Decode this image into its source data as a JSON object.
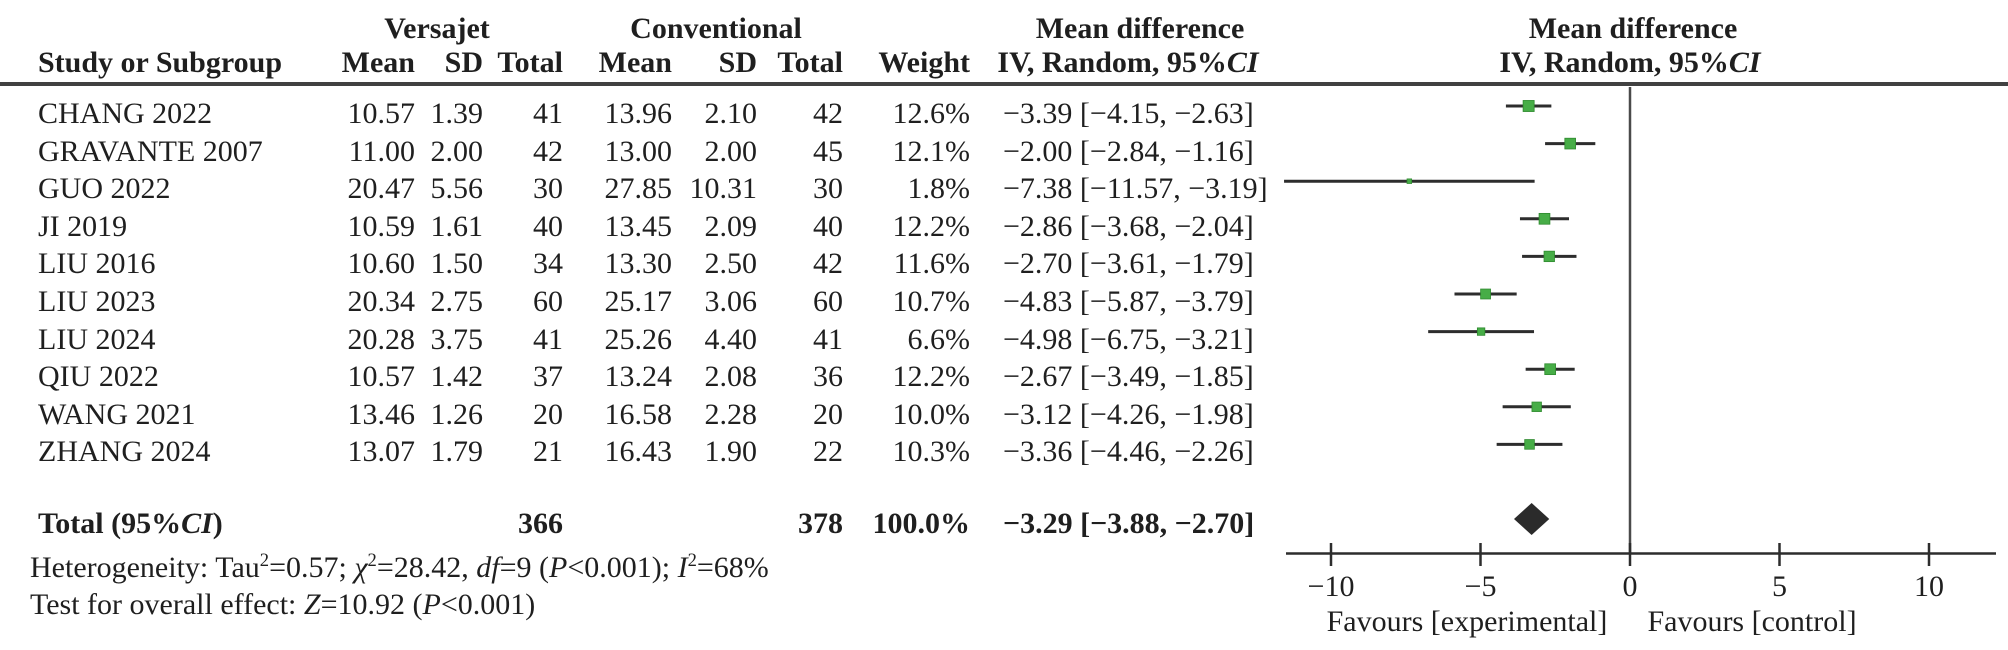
{
  "header": {
    "study_col": "Study or Subgroup",
    "group_experimental": "Versajet",
    "group_control": "Conventional",
    "sub_cols": {
      "mean": "Mean",
      "sd": "SD",
      "total": "Total",
      "weight": "Weight"
    },
    "effect_line1": "Mean difference",
    "effect_line2_pre": "IV, Random, 95%",
    "effect_line2_ci": "CI"
  },
  "total_row": {
    "label_pre": "Total (95%",
    "label_ci": "CI",
    "label_post": ")",
    "v_total": "366",
    "c_total": "378",
    "weight": "100.0%",
    "ci_text": "−3.29 [−3.88, −2.70]"
  },
  "footnotes": {
    "heterogeneity_segments": [
      {
        "t": "Heterogeneity: Tau"
      },
      {
        "t": "2",
        "sup": true
      },
      {
        "t": "=0.57; "
      },
      {
        "t": "χ",
        "i": true
      },
      {
        "t": "2",
        "sup": true
      },
      {
        "t": "=28.42, "
      },
      {
        "t": "df",
        "i": true
      },
      {
        "t": "=9 ("
      },
      {
        "t": "P",
        "i": true
      },
      {
        "t": "<0.001); "
      },
      {
        "t": "I",
        "i": true
      },
      {
        "t": "2",
        "sup": true
      },
      {
        "t": "=68%"
      }
    ],
    "overall_effect_segments": [
      {
        "t": "Test for overall effect: "
      },
      {
        "t": "Z",
        "i": true
      },
      {
        "t": "=10.92 ("
      },
      {
        "t": "P",
        "i": true
      },
      {
        "t": "<0.001)"
      }
    ]
  },
  "chart_data": {
    "type": "forest",
    "title": "Mean difference — IV, Random, 95% CI (Versajet vs Conventional)",
    "x_axis": {
      "ticks": [
        -10,
        -5,
        0,
        5,
        10
      ],
      "tick_labels": [
        "−10",
        "−5",
        "0",
        "5",
        "10"
      ],
      "range": [
        -11.5,
        12.2
      ],
      "label_left": "Favours [experimental]",
      "label_right": "Favours [control]"
    },
    "marker_color": "#47ad47",
    "line_color": "#2d2d2d",
    "studies": [
      {
        "name": "CHANG 2022",
        "v_mean": "10.57",
        "v_sd": "1.39",
        "v_total": "41",
        "c_mean": "13.96",
        "c_sd": "2.10",
        "c_total": "42",
        "weight": "12.6%",
        "ci_text": "−3.39 [−4.15, −2.63]",
        "md": -3.39,
        "lo": -4.15,
        "hi": -2.63,
        "w": 12.6
      },
      {
        "name": "GRAVANTE 2007",
        "v_mean": "11.00",
        "v_sd": "2.00",
        "v_total": "42",
        "c_mean": "13.00",
        "c_sd": "2.00",
        "c_total": "45",
        "weight": "12.1%",
        "ci_text": "−2.00 [−2.84, −1.16]",
        "md": -2.0,
        "lo": -2.84,
        "hi": -1.16,
        "w": 12.1
      },
      {
        "name": "GUO 2022",
        "v_mean": "20.47",
        "v_sd": "5.56",
        "v_total": "30",
        "c_mean": "27.85",
        "c_sd": "10.31",
        "c_total": "30",
        "weight": "1.8%",
        "ci_text": "−7.38 [−11.57, −3.19]",
        "md": -7.38,
        "lo": -11.57,
        "hi": -3.19,
        "w": 1.8
      },
      {
        "name": "JI 2019",
        "v_mean": "10.59",
        "v_sd": "1.61",
        "v_total": "40",
        "c_mean": "13.45",
        "c_sd": "2.09",
        "c_total": "40",
        "weight": "12.2%",
        "ci_text": "−2.86 [−3.68, −2.04]",
        "md": -2.86,
        "lo": -3.68,
        "hi": -2.04,
        "w": 12.2
      },
      {
        "name": "LIU 2016",
        "v_mean": "10.60",
        "v_sd": "1.50",
        "v_total": "34",
        "c_mean": "13.30",
        "c_sd": "2.50",
        "c_total": "42",
        "weight": "11.6%",
        "ci_text": "−2.70 [−3.61, −1.79]",
        "md": -2.7,
        "lo": -3.61,
        "hi": -1.79,
        "w": 11.6
      },
      {
        "name": "LIU 2023",
        "v_mean": "20.34",
        "v_sd": "2.75",
        "v_total": "60",
        "c_mean": "25.17",
        "c_sd": "3.06",
        "c_total": "60",
        "weight": "10.7%",
        "ci_text": "−4.83 [−5.87, −3.79]",
        "md": -4.83,
        "lo": -5.87,
        "hi": -3.79,
        "w": 10.7
      },
      {
        "name": "LIU 2024",
        "v_mean": "20.28",
        "v_sd": "3.75",
        "v_total": "41",
        "c_mean": "25.26",
        "c_sd": "4.40",
        "c_total": "41",
        "weight": "6.6%",
        "ci_text": "−4.98 [−6.75, −3.21]",
        "md": -4.98,
        "lo": -6.75,
        "hi": -3.21,
        "w": 6.6
      },
      {
        "name": "QIU 2022",
        "v_mean": "10.57",
        "v_sd": "1.42",
        "v_total": "37",
        "c_mean": "13.24",
        "c_sd": "2.08",
        "c_total": "36",
        "weight": "12.2%",
        "ci_text": "−2.67 [−3.49, −1.85]",
        "md": -2.67,
        "lo": -3.49,
        "hi": -1.85,
        "w": 12.2
      },
      {
        "name": "WANG 2021",
        "v_mean": "13.46",
        "v_sd": "1.26",
        "v_total": "20",
        "c_mean": "16.58",
        "c_sd": "2.28",
        "c_total": "20",
        "weight": "10.0%",
        "ci_text": "−3.12 [−4.26, −1.98]",
        "md": -3.12,
        "lo": -4.26,
        "hi": -1.98,
        "w": 10.0
      },
      {
        "name": "ZHANG 2024",
        "v_mean": "13.07",
        "v_sd": "1.79",
        "v_total": "21",
        "c_mean": "16.43",
        "c_sd": "1.90",
        "c_total": "22",
        "weight": "10.3%",
        "ci_text": "−3.36 [−4.46, −2.26]",
        "md": -3.36,
        "lo": -4.46,
        "hi": -2.26,
        "w": 10.3
      }
    ],
    "overall": {
      "md": -3.29,
      "lo": -3.88,
      "hi": -2.7
    }
  }
}
